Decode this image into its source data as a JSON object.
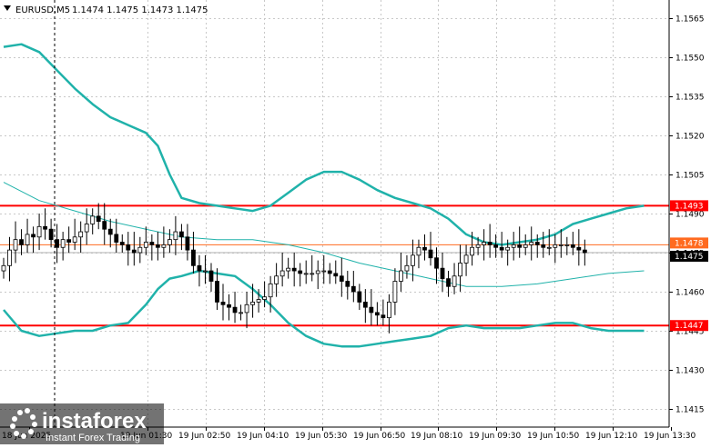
{
  "header": {
    "symbol": "EURUSD,M5",
    "ohlc": "1.1474 1.1475 1.1473 1.1475",
    "dropdown_icon": "triangle-down-icon"
  },
  "branding": {
    "logo": "instaforex",
    "tagline": "Instant Forex Trading",
    "logo_icon": "instaforex-dots-logo"
  },
  "chart_data": {
    "type": "candlestick",
    "title": "",
    "xlabel": "",
    "ylabel": "",
    "ylim": [
      1.1408,
      1.1572
    ],
    "grid": true,
    "y_ticks": [
      "1.1565",
      "1.1550",
      "1.1535",
      "1.1520",
      "1.1505",
      "1.1490",
      "1.1475",
      "1.1460",
      "1.1445",
      "1.1430",
      "1.1415"
    ],
    "x_ticks": [
      "18 Jun 2025",
      "19 Jun 01:30",
      "19 Jun 02:50",
      "19 Jun 04:10",
      "19 Jun 05:30",
      "19 Jun 06:50",
      "19 Jun 08:10",
      "19 Jun 09:30",
      "19 Jun 10:50",
      "19 Jun 12:10",
      "19 Jun 13:30"
    ],
    "price_labels": [
      {
        "value": 1.1493,
        "text": "1.1493",
        "bg": "#ff0000",
        "fg": "#ffffff"
      },
      {
        "value": 1.1478,
        "text": "1.1478",
        "bg": "#ff6a1f",
        "fg": "#ffffff"
      },
      {
        "value": 1.1475,
        "text": "1.1475",
        "bg": "#000000",
        "fg": "#ffffff"
      },
      {
        "value": 1.1447,
        "text": "1.1447",
        "bg": "#ff0000",
        "fg": "#ffffff"
      }
    ],
    "horizontal_lines": [
      {
        "value": 1.1493,
        "color": "#ff0000"
      },
      {
        "value": 1.1478,
        "color": "#ff6a1f"
      },
      {
        "value": 1.1447,
        "color": "#ff0000"
      }
    ],
    "bollinger_upper": [
      [
        0,
        1.1554
      ],
      [
        3,
        1.1555
      ],
      [
        6,
        1.1552
      ],
      [
        9,
        1.1545
      ],
      [
        12,
        1.1538
      ],
      [
        15,
        1.1532
      ],
      [
        18,
        1.1527
      ],
      [
        21,
        1.1524
      ],
      [
        24,
        1.1521
      ],
      [
        26,
        1.1516
      ],
      [
        28,
        1.1505
      ],
      [
        30,
        1.1496
      ],
      [
        33,
        1.1494
      ],
      [
        36,
        1.1493
      ],
      [
        39,
        1.1492
      ],
      [
        42,
        1.1491
      ],
      [
        45,
        1.1493
      ],
      [
        48,
        1.1498
      ],
      [
        51,
        1.1503
      ],
      [
        54,
        1.1506
      ],
      [
        57,
        1.1506
      ],
      [
        60,
        1.1503
      ],
      [
        63,
        1.1499
      ],
      [
        66,
        1.1496
      ],
      [
        69,
        1.1494
      ],
      [
        72,
        1.1492
      ],
      [
        75,
        1.1488
      ],
      [
        78,
        1.1482
      ],
      [
        81,
        1.1479
      ],
      [
        84,
        1.1478
      ],
      [
        87,
        1.1479
      ],
      [
        90,
        1.148
      ],
      [
        93,
        1.1482
      ],
      [
        96,
        1.1486
      ],
      [
        99,
        1.1488
      ],
      [
        102,
        1.149
      ],
      [
        105,
        1.1492
      ],
      [
        108,
        1.1493
      ]
    ],
    "bollinger_lower": [
      [
        0,
        1.1453
      ],
      [
        3,
        1.1445
      ],
      [
        6,
        1.1443
      ],
      [
        9,
        1.1444
      ],
      [
        12,
        1.1445
      ],
      [
        15,
        1.1445
      ],
      [
        18,
        1.1447
      ],
      [
        21,
        1.1448
      ],
      [
        24,
        1.1455
      ],
      [
        26,
        1.1461
      ],
      [
        28,
        1.1465
      ],
      [
        30,
        1.1466
      ],
      [
        33,
        1.1468
      ],
      [
        36,
        1.1467
      ],
      [
        39,
        1.1466
      ],
      [
        42,
        1.1461
      ],
      [
        45,
        1.1455
      ],
      [
        48,
        1.1448
      ],
      [
        51,
        1.1443
      ],
      [
        54,
        1.144
      ],
      [
        57,
        1.1439
      ],
      [
        60,
        1.1439
      ],
      [
        63,
        1.144
      ],
      [
        66,
        1.1441
      ],
      [
        69,
        1.1442
      ],
      [
        72,
        1.1443
      ],
      [
        75,
        1.1446
      ],
      [
        78,
        1.1447
      ],
      [
        81,
        1.1446
      ],
      [
        84,
        1.1446
      ],
      [
        87,
        1.1446
      ],
      [
        90,
        1.1447
      ],
      [
        93,
        1.1448
      ],
      [
        96,
        1.1448
      ],
      [
        99,
        1.1446
      ],
      [
        102,
        1.1445
      ],
      [
        105,
        1.1445
      ],
      [
        108,
        1.1445
      ]
    ],
    "moving_average": [
      [
        0,
        1.1502
      ],
      [
        6,
        1.1495
      ],
      [
        12,
        1.1491
      ],
      [
        18,
        1.1487
      ],
      [
        24,
        1.1484
      ],
      [
        30,
        1.1481
      ],
      [
        36,
        1.148
      ],
      [
        42,
        1.148
      ],
      [
        48,
        1.1478
      ],
      [
        54,
        1.1475
      ],
      [
        60,
        1.1471
      ],
      [
        66,
        1.1468
      ],
      [
        72,
        1.1465
      ],
      [
        78,
        1.1462
      ],
      [
        84,
        1.1462
      ],
      [
        90,
        1.1463
      ],
      [
        96,
        1.1465
      ],
      [
        102,
        1.1467
      ],
      [
        108,
        1.1468
      ]
    ],
    "closes": [
      1.147,
      1.1476,
      1.148,
      1.1478,
      1.1482,
      1.1481,
      1.1485,
      1.1484,
      1.148,
      1.1477,
      1.148,
      1.1479,
      1.1481,
      1.1483,
      1.1486,
      1.1489,
      1.1487,
      1.1484,
      1.1482,
      1.1479,
      1.1478,
      1.1476,
      1.1475,
      1.1477,
      1.1479,
      1.1478,
      1.1477,
      1.1478,
      1.148,
      1.1483,
      1.1481,
      1.1476,
      1.147,
      1.1468,
      1.1468,
      1.1464,
      1.1456,
      1.1455,
      1.1454,
      1.1452,
      1.1452,
      1.1455,
      1.1456,
      1.1457,
      1.1458,
      1.1463,
      1.1466,
      1.1468,
      1.1469,
      1.1468,
      1.1467,
      1.1467,
      1.1467,
      1.1468,
      1.1468,
      1.1467,
      1.1466,
      1.1464,
      1.1462,
      1.146,
      1.1456,
      1.1454,
      1.1452,
      1.1451,
      1.145,
      1.1456,
      1.1464,
      1.1468,
      1.147,
      1.1474,
      1.1477,
      1.1476,
      1.1473,
      1.1469,
      1.1465,
      1.1462,
      1.1466,
      1.1471,
      1.1474,
      1.1477,
      1.1478,
      1.1479,
      1.1478,
      1.1477,
      1.1476,
      1.1477,
      1.1478,
      1.1477,
      1.1478,
      1.1479,
      1.1478,
      1.1477,
      1.1477,
      1.1478,
      1.1478,
      1.1478,
      1.1477,
      1.1476,
      1.1475
    ]
  }
}
